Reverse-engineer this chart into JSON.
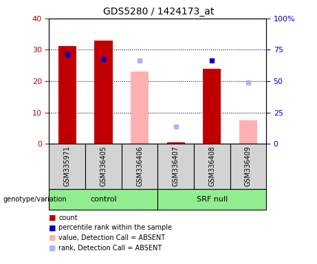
{
  "title": "GDS5280 / 1424173_at",
  "samples": [
    "GSM335971",
    "GSM336405",
    "GSM336406",
    "GSM336407",
    "GSM336408",
    "GSM336409"
  ],
  "red_bars": [
    31.2,
    33.0,
    0.0,
    0.5,
    24.0,
    0.0
  ],
  "blue_squares_left": [
    28.5,
    27.0,
    0.0,
    0.0,
    26.5,
    0.0
  ],
  "pink_bars": [
    0.0,
    0.0,
    23.0,
    0.0,
    0.0,
    7.5
  ],
  "light_blue_squares_left": [
    0.0,
    0.0,
    26.5,
    5.5,
    0.0,
    19.5
  ],
  "groups": [
    {
      "label": "control",
      "start": 0,
      "end": 2
    },
    {
      "label": "SRF null",
      "start": 3,
      "end": 5
    }
  ],
  "ylim_left": [
    0,
    40
  ],
  "ylim_right": [
    0,
    100
  ],
  "yticks_left": [
    0,
    10,
    20,
    30,
    40
  ],
  "yticks_right": [
    0,
    25,
    50,
    75,
    100
  ],
  "yticklabels_right": [
    "0",
    "25",
    "50",
    "75",
    "100%"
  ],
  "color_red": "#c00000",
  "color_blue": "#0000cc",
  "color_pink": "#ffb0b0",
  "color_light_blue": "#b0b0ff",
  "color_green": "#90ee90",
  "color_sample_bg": "#d3d3d3",
  "color_white": "#ffffff",
  "legend_items": [
    {
      "color": "#c00000",
      "label": "count"
    },
    {
      "color": "#0000cc",
      "label": "percentile rank within the sample"
    },
    {
      "color": "#ffb0b0",
      "label": "value, Detection Call = ABSENT"
    },
    {
      "color": "#b0b0ff",
      "label": "rank, Detection Call = ABSENT"
    }
  ]
}
